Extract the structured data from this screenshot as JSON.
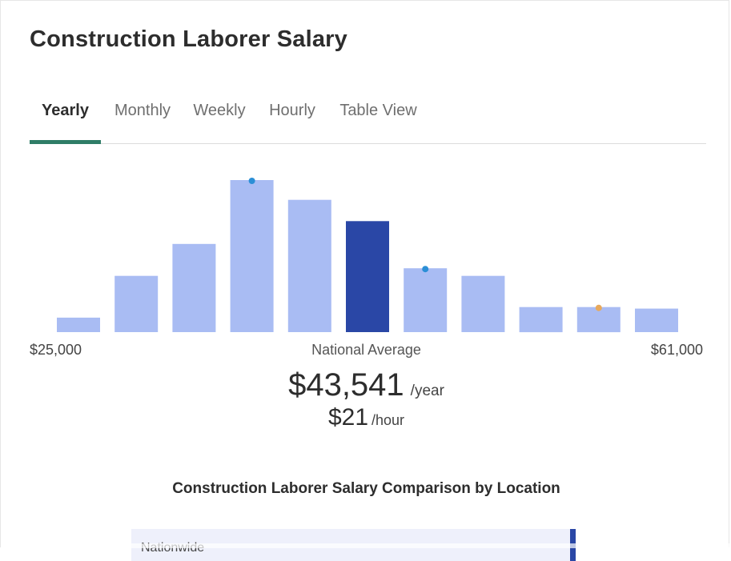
{
  "page": {
    "title": "Construction Laborer Salary"
  },
  "tabs": [
    {
      "label": "Yearly",
      "active": true
    },
    {
      "label": "Monthly",
      "active": false
    },
    {
      "label": "Weekly",
      "active": false
    },
    {
      "label": "Hourly",
      "active": false
    },
    {
      "label": "Table View",
      "active": false
    }
  ],
  "chart_data": {
    "type": "bar",
    "bar_heights_relative": [
      0.095,
      0.37,
      0.58,
      1.0,
      0.87,
      0.73,
      0.42,
      0.37,
      0.165,
      0.165,
      0.155
    ],
    "highlight_index": 5,
    "markers": [
      {
        "bar_index": 3,
        "color": "#2b8fd6"
      },
      {
        "bar_index": 6,
        "color": "#2b8fd6"
      },
      {
        "bar_index": 9,
        "color": "#e8a95c"
      }
    ],
    "colors": {
      "bar": "#a9bcf3",
      "highlight": "#2a47a6"
    },
    "x_min_label": "$25,000",
    "x_max_label": "$61,000",
    "center_label": "National Average"
  },
  "average": {
    "yearly_value": "$43,541",
    "yearly_unit": "/year",
    "hourly_value": "$21",
    "hourly_unit": "/hour"
  },
  "comparison": {
    "title": "Construction Laborer Salary Comparison by Location",
    "rows": [
      {
        "label": "Nationwide"
      }
    ]
  },
  "colors": {
    "tab_indicator": "#2f7d67"
  }
}
